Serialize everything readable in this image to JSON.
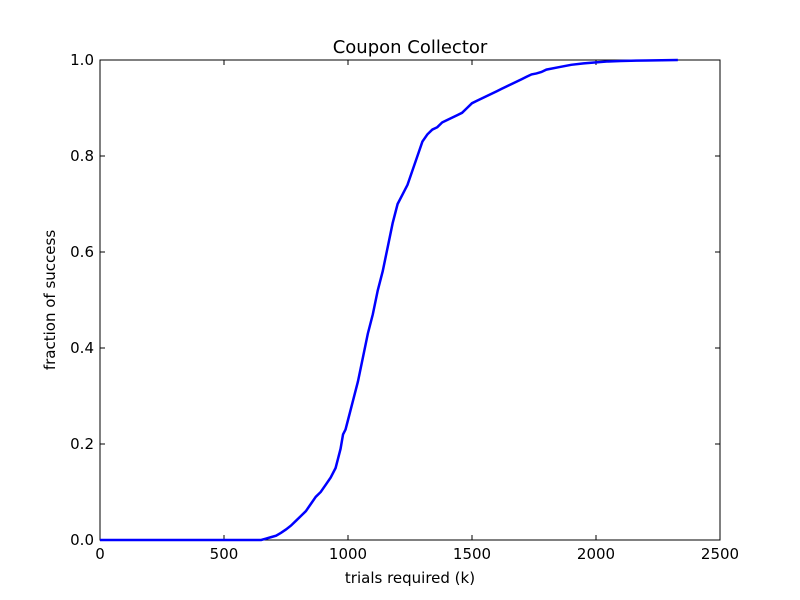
{
  "chart_data": {
    "type": "line",
    "title": "Coupon Collector",
    "xlabel": "trials required (k)",
    "ylabel": "fraction of success",
    "xlim": [
      0,
      2500
    ],
    "ylim": [
      0,
      1.0
    ],
    "x_ticks": [
      0,
      500,
      1000,
      1500,
      2000,
      2500
    ],
    "x_tick_labels": [
      "0",
      "500",
      "1000",
      "1500",
      "2000",
      "2500"
    ],
    "y_ticks": [
      0,
      0.2,
      0.4,
      0.6,
      0.8,
      1.0
    ],
    "y_tick_labels": [
      "0.0",
      "0.2",
      "0.4",
      "0.6",
      "0.8",
      "1.0"
    ],
    "grid": false,
    "line_color": "#0000ff",
    "series": [
      {
        "x": [
          0,
          650,
          670,
          690,
          710,
          730,
          750,
          770,
          790,
          810,
          830,
          850,
          870,
          890,
          910,
          930,
          950,
          960,
          970,
          980,
          990,
          1000,
          1020,
          1040,
          1060,
          1080,
          1100,
          1120,
          1140,
          1160,
          1180,
          1200,
          1220,
          1240,
          1260,
          1280,
          1300,
          1320,
          1340,
          1360,
          1380,
          1400,
          1420,
          1440,
          1460,
          1480,
          1500,
          1520,
          1540,
          1560,
          1580,
          1600,
          1620,
          1640,
          1660,
          1680,
          1700,
          1720,
          1740,
          1760,
          1780,
          1800,
          1850,
          1900,
          1950,
          2000,
          2050,
          2100,
          2200,
          2330
        ],
        "y": [
          0,
          0,
          0.003,
          0.006,
          0.009,
          0.015,
          0.022,
          0.03,
          0.04,
          0.05,
          0.06,
          0.075,
          0.09,
          0.1,
          0.115,
          0.13,
          0.15,
          0.17,
          0.19,
          0.22,
          0.23,
          0.25,
          0.29,
          0.33,
          0.38,
          0.43,
          0.47,
          0.52,
          0.56,
          0.61,
          0.66,
          0.7,
          0.72,
          0.74,
          0.77,
          0.8,
          0.83,
          0.845,
          0.855,
          0.86,
          0.87,
          0.875,
          0.88,
          0.885,
          0.89,
          0.9,
          0.91,
          0.915,
          0.92,
          0.925,
          0.93,
          0.935,
          0.94,
          0.945,
          0.95,
          0.955,
          0.96,
          0.965,
          0.97,
          0.972,
          0.975,
          0.98,
          0.985,
          0.99,
          0.993,
          0.995,
          0.997,
          0.998,
          0.999,
          1.0
        ]
      }
    ]
  }
}
